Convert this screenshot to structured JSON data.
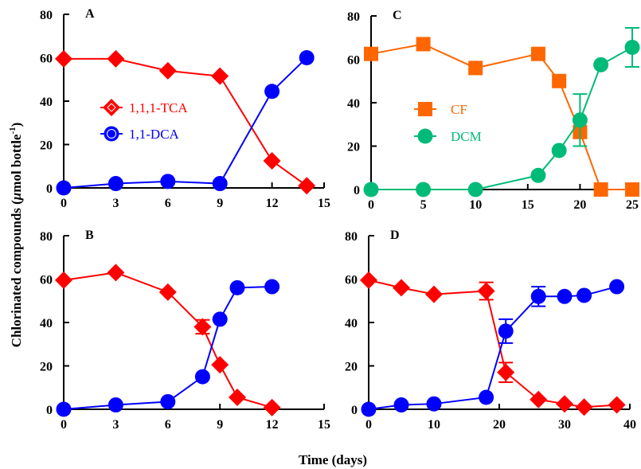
{
  "figure": {
    "ylabel_main": "Chlorinated compounds (",
    "ylabel_mu": "μ",
    "ylabel_rest": "mol bottle",
    "ylabel_sup": "-1",
    "ylabel_close": ")",
    "xlabel": "Time (days)"
  },
  "colors": {
    "tca": "#ff0000",
    "dca": "#0000ff",
    "cf": "#ff6600",
    "dcm": "#00bb77"
  },
  "chart_data": [
    {
      "type": "line",
      "panel": "A",
      "title": "A",
      "xlabel": "Time (days)",
      "ylabel": "Chlorinated compounds (μmol bottle-1)",
      "xlim": [
        0,
        15
      ],
      "ylim": [
        0,
        80
      ],
      "xticks": [
        0,
        3,
        6,
        9,
        12,
        15
      ],
      "yticks": [
        0,
        20,
        40,
        60,
        80
      ],
      "legend": {
        "placement": "center-left",
        "entries": [
          "1,1,1-TCA",
          "1,1-DCA"
        ]
      },
      "series": [
        {
          "name": "1,1,1-TCA",
          "color_key": "tca",
          "marker": "diamond",
          "x": [
            0,
            3,
            6,
            9,
            12,
            14
          ],
          "y": [
            59.5,
            59.5,
            54,
            51.5,
            12.5,
            1
          ],
          "err": [
            0,
            0,
            0,
            0,
            0,
            0
          ]
        },
        {
          "name": "1,1-DCA",
          "color_key": "dca",
          "marker": "circle",
          "x": [
            0,
            3,
            6,
            9,
            12,
            14
          ],
          "y": [
            0,
            2,
            3,
            2,
            44.5,
            60
          ],
          "err": [
            0,
            0,
            0,
            0,
            0,
            0
          ]
        }
      ]
    },
    {
      "type": "line",
      "panel": "C",
      "title": "C",
      "xlabel": "Time (days)",
      "ylabel": "",
      "xlim": [
        0,
        25
      ],
      "ylim": [
        0,
        80
      ],
      "xticks": [
        0,
        5,
        10,
        15,
        20,
        25
      ],
      "yticks": [
        0,
        20,
        40,
        60,
        80
      ],
      "legend": {
        "placement": "center-left",
        "entries": [
          "CF",
          "DCM"
        ]
      },
      "series": [
        {
          "name": "CF",
          "color_key": "cf",
          "marker": "square",
          "x": [
            0,
            5,
            10,
            16,
            18,
            20,
            22,
            25
          ],
          "y": [
            62.5,
            67,
            56,
            62.5,
            50,
            26.5,
            0,
            0
          ],
          "err": [
            0,
            0,
            0,
            0,
            0,
            0,
            0,
            0
          ]
        },
        {
          "name": "DCM",
          "color_key": "dcm",
          "marker": "circle",
          "x": [
            0,
            5,
            10,
            16,
            18,
            20,
            22,
            25
          ],
          "y": [
            0,
            0,
            0,
            6.5,
            18,
            32,
            57.5,
            65.5
          ],
          "err": [
            0,
            0,
            0,
            0,
            0,
            12,
            0,
            9
          ]
        }
      ]
    },
    {
      "type": "line",
      "panel": "B",
      "title": "B",
      "xlabel": "Time (days)",
      "ylabel": "",
      "xlim": [
        0,
        15
      ],
      "ylim": [
        0,
        80
      ],
      "xticks": [
        0,
        3,
        6,
        9,
        12,
        15
      ],
      "yticks": [
        0,
        20,
        40,
        60,
        80
      ],
      "legend": null,
      "series": [
        {
          "name": "1,1,1-TCA",
          "color_key": "tca",
          "marker": "diamond",
          "x": [
            0,
            3,
            6,
            8,
            9,
            10,
            12
          ],
          "y": [
            59.5,
            63,
            54,
            38,
            20.5,
            5.5,
            0.8
          ],
          "err": [
            0,
            0,
            0,
            3.2,
            0,
            0,
            0
          ]
        },
        {
          "name": "1,1-DCA",
          "color_key": "dca",
          "marker": "circle",
          "x": [
            0,
            3,
            6,
            8,
            9,
            10,
            12
          ],
          "y": [
            0,
            2,
            3.5,
            15,
            41.5,
            56,
            56.5
          ],
          "err": [
            0,
            0,
            0,
            0,
            0,
            0,
            0
          ]
        }
      ]
    },
    {
      "type": "line",
      "panel": "D",
      "title": "D",
      "xlabel": "Time (days)",
      "ylabel": "",
      "xlim": [
        0,
        40
      ],
      "ylim": [
        0,
        80
      ],
      "xticks": [
        0,
        10,
        20,
        30,
        40
      ],
      "yticks": [
        0,
        20,
        40,
        60,
        80
      ],
      "legend": null,
      "series": [
        {
          "name": "1,1,1-TCA",
          "color_key": "tca",
          "marker": "diamond",
          "x": [
            0,
            5,
            10,
            18,
            21,
            26,
            30,
            33,
            38
          ],
          "y": [
            59.5,
            56,
            53,
            54.5,
            17,
            4.5,
            2.5,
            1,
            2
          ],
          "err": [
            0,
            0,
            0,
            4,
            4.5,
            0,
            0,
            0,
            0
          ]
        },
        {
          "name": "1,1-DCA",
          "color_key": "dca",
          "marker": "circle",
          "x": [
            0,
            5,
            10,
            18,
            21,
            26,
            30,
            33,
            38
          ],
          "y": [
            0,
            2,
            2.5,
            5.5,
            36,
            52,
            52,
            52.5,
            56.5
          ],
          "err": [
            0,
            0,
            0,
            0,
            5.5,
            4.5,
            0,
            0,
            0
          ]
        }
      ]
    }
  ]
}
